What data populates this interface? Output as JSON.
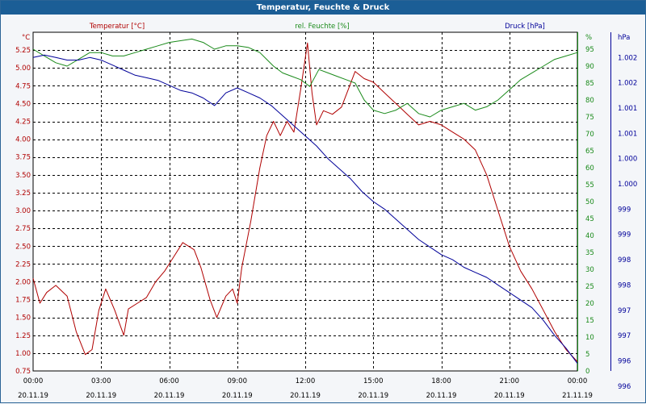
{
  "window": {
    "title": "Temperatur, Feuchte & Druck"
  },
  "chart_data": {
    "type": "line",
    "title": "Temperatur, Feuchte & Druck",
    "colors": {
      "temperature": "#b00000",
      "humidity": "#1a8a1a",
      "pressure": "#000099",
      "grid": "#000000",
      "plot_bg": "#ffffff"
    },
    "x_axis": {
      "range_hours": [
        0,
        24
      ],
      "tick_times": [
        "00:00",
        "03:00",
        "06:00",
        "09:00",
        "12:00",
        "15:00",
        "18:00",
        "21:00",
        "00:00"
      ],
      "tick_dates": [
        "20.11.19",
        "20.11.19",
        "20.11.19",
        "20.11.19",
        "20.11.19",
        "20.11.19",
        "20.11.19",
        "20.11.19",
        "21.11.19"
      ]
    },
    "left_axis": {
      "label": "Temperatur [°C]",
      "unit": "°C",
      "ylim": [
        0.75,
        5.5
      ],
      "ticks": [
        "5.25",
        "5.00",
        "4.75",
        "4.50",
        "4.25",
        "4.00",
        "3.75",
        "3.50",
        "3.25",
        "3.00",
        "2.75",
        "2.50",
        "2.25",
        "2.00",
        "1.75",
        "1.50",
        "1.25",
        "1.00",
        "0.75"
      ]
    },
    "humidity_axis": {
      "label": "rel. Feuchte [%]",
      "unit": "%",
      "ylim": [
        0,
        100
      ],
      "ticks": [
        "95",
        "90",
        "85",
        "80",
        "75",
        "70",
        "65",
        "60",
        "55",
        "50",
        "45",
        "40",
        "35",
        "30",
        "25",
        "20",
        "15",
        "10",
        "5",
        "0"
      ]
    },
    "pressure_axis": {
      "label": "Druck [hPa]",
      "unit": "hPa",
      "ticks": [
        "1.002",
        "1.002",
        "1.001",
        "1.001",
        "1.000",
        "1.000",
        "999",
        "999",
        "998",
        "998",
        "997",
        "997",
        "996",
        "996"
      ],
      "ylim": [
        995.8,
        1002.5
      ],
      "tick_values": [
        1002.0,
        1001.5,
        1001.0,
        1000.5,
        1000.0,
        999.5,
        999.0,
        998.5,
        998.0,
        997.5,
        997.0,
        996.5,
        996.0,
        995.5
      ]
    },
    "series": [
      {
        "name": "Temperatur [°C]",
        "axis": "left",
        "x": [
          0,
          0.3,
          0.6,
          1.0,
          1.5,
          1.9,
          2.3,
          2.6,
          2.9,
          3.2,
          3.6,
          4.0,
          4.2,
          4.6,
          5.0,
          5.4,
          5.8,
          6.2,
          6.6,
          7.1,
          7.4,
          7.8,
          8.1,
          8.5,
          8.8,
          9.0,
          9.2,
          9.6,
          10.0,
          10.3,
          10.6,
          10.9,
          11.2,
          11.5,
          11.8,
          12.1,
          12.3,
          12.5,
          12.8,
          13.2,
          13.6,
          13.9,
          14.2,
          14.6,
          15.0,
          15.5,
          16.0,
          16.5,
          17.0,
          17.5,
          18.0,
          18.5,
          19.0,
          19.5,
          20.0,
          20.5,
          21.0,
          21.5,
          22.0,
          22.5,
          23.0,
          23.5,
          24.0
        ],
        "values": [
          2.05,
          1.7,
          1.85,
          1.95,
          1.8,
          1.3,
          0.98,
          1.05,
          1.6,
          1.9,
          1.6,
          1.25,
          1.62,
          1.7,
          1.78,
          2.0,
          2.15,
          2.35,
          2.55,
          2.45,
          2.2,
          1.75,
          1.5,
          1.8,
          1.9,
          1.7,
          2.2,
          2.85,
          3.6,
          4.05,
          4.25,
          4.05,
          4.25,
          4.1,
          4.7,
          5.35,
          4.65,
          4.2,
          4.4,
          4.35,
          4.45,
          4.7,
          4.95,
          4.85,
          4.8,
          4.65,
          4.5,
          4.35,
          4.2,
          4.25,
          4.2,
          4.1,
          4.0,
          3.85,
          3.5,
          3.0,
          2.5,
          2.15,
          1.9,
          1.6,
          1.3,
          1.05,
          0.88
        ]
      },
      {
        "name": "rel. Feuchte [%]",
        "axis": "humidity",
        "x": [
          0,
          0.5,
          1.0,
          1.5,
          2.0,
          2.5,
          3.0,
          3.5,
          4.0,
          4.5,
          5.0,
          5.5,
          6.0,
          6.5,
          7.0,
          7.5,
          8.0,
          8.5,
          9.0,
          9.5,
          10.0,
          10.3,
          10.6,
          11.0,
          11.4,
          11.8,
          12.2,
          12.6,
          13.0,
          13.4,
          13.8,
          14.2,
          14.6,
          15.0,
          15.5,
          16.0,
          16.5,
          17.0,
          17.5,
          18.0,
          18.5,
          19.0,
          19.5,
          20.0,
          20.5,
          21.0,
          21.5,
          22.0,
          22.5,
          23.0,
          23.5,
          24.0
        ],
        "values": [
          95,
          93,
          91,
          90,
          92,
          94,
          94,
          93,
          93,
          94,
          95,
          96,
          97,
          97.5,
          98,
          97,
          95,
          96,
          96,
          95.5,
          94,
          92,
          90,
          88,
          87,
          86,
          84,
          89,
          88,
          87,
          86,
          85,
          80,
          77,
          76,
          77,
          79,
          76,
          75,
          77,
          78,
          79,
          77,
          78,
          80,
          83,
          86,
          88,
          90,
          92,
          93,
          94
        ]
      },
      {
        "name": "Druck [hPa]",
        "axis": "pressure",
        "x": [
          0,
          0.5,
          1.0,
          1.5,
          2.0,
          2.5,
          3.0,
          3.5,
          4.0,
          4.5,
          5.0,
          5.5,
          6.0,
          6.5,
          7.0,
          7.5,
          8.0,
          8.5,
          9.0,
          9.5,
          10.0,
          10.5,
          11.0,
          11.5,
          12.0,
          12.5,
          13.0,
          13.5,
          14.0,
          14.5,
          15.0,
          15.5,
          16.0,
          16.5,
          17.0,
          17.5,
          18.0,
          18.5,
          19.0,
          19.5,
          20.0,
          20.5,
          21.0,
          21.5,
          22.0,
          22.5,
          23.0,
          23.5,
          24.0
        ],
        "values": [
          1002.0,
          1002.05,
          1002.0,
          1001.95,
          1001.95,
          1002.0,
          1001.95,
          1001.85,
          1001.75,
          1001.65,
          1001.6,
          1001.55,
          1001.45,
          1001.35,
          1001.3,
          1001.2,
          1001.05,
          1001.3,
          1001.4,
          1001.3,
          1001.2,
          1001.05,
          1000.85,
          1000.65,
          1000.45,
          1000.25,
          1000.0,
          999.8,
          999.6,
          999.35,
          999.15,
          999.0,
          998.8,
          998.6,
          998.4,
          998.25,
          998.1,
          998.0,
          997.85,
          997.75,
          997.65,
          997.5,
          997.35,
          997.2,
          997.05,
          996.8,
          996.5,
          996.25,
          995.95
        ]
      }
    ]
  }
}
